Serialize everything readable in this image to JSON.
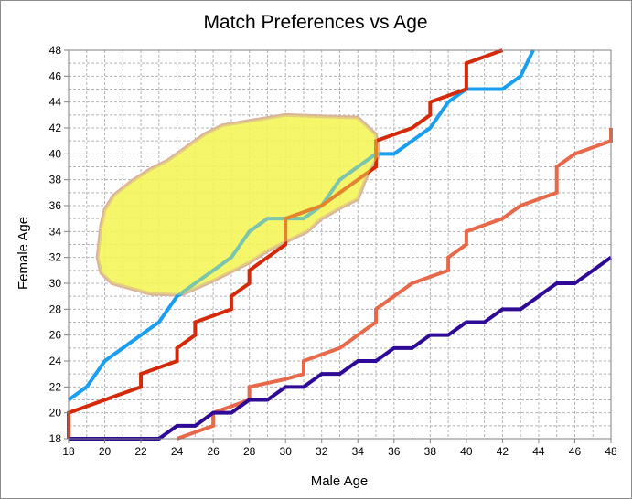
{
  "chart_data": {
    "type": "line",
    "title": "Match Preferences vs Age",
    "xlabel": "Male Age",
    "ylabel": "Female Age",
    "xlim": [
      18,
      48
    ],
    "ylim": [
      18,
      48
    ],
    "x_ticks": [
      18,
      20,
      22,
      24,
      26,
      28,
      30,
      32,
      34,
      36,
      38,
      40,
      42,
      44,
      46,
      48
    ],
    "y_ticks": [
      18,
      20,
      22,
      24,
      26,
      28,
      30,
      32,
      34,
      36,
      38,
      40,
      42,
      44,
      46,
      48
    ],
    "grid": true,
    "legend": "none",
    "highlight_region": {
      "color": "#f5f55a",
      "border_color": "#d9b59a",
      "points": [
        [
          26.5,
          42.2
        ],
        [
          30,
          43
        ],
        [
          34,
          42.8
        ],
        [
          35,
          41.5
        ],
        [
          35.2,
          40
        ],
        [
          34.5,
          38.3
        ],
        [
          34,
          36.5
        ],
        [
          33,
          35.8
        ],
        [
          32,
          35
        ],
        [
          31.2,
          34
        ],
        [
          30,
          33.2
        ],
        [
          29,
          32.5
        ],
        [
          28,
          31.6
        ],
        [
          26,
          30.2
        ],
        [
          24.2,
          29.1
        ],
        [
          22.5,
          29.2
        ],
        [
          20.4,
          30
        ],
        [
          19.8,
          30.8
        ],
        [
          19.6,
          32
        ],
        [
          19.8,
          34.5
        ],
        [
          20,
          35.7
        ],
        [
          20.5,
          36.8
        ],
        [
          21.5,
          37.9
        ],
        [
          22.5,
          38.8
        ],
        [
          23.5,
          39.5
        ],
        [
          24.5,
          40.5
        ],
        [
          25.5,
          41.5
        ]
      ]
    },
    "series": [
      {
        "color": "#1a9ff0",
        "points": [
          [
            18,
            21
          ],
          [
            19,
            22
          ],
          [
            20,
            24
          ],
          [
            21,
            25
          ],
          [
            22,
            26
          ],
          [
            23,
            27
          ],
          [
            24,
            29
          ],
          [
            25,
            30
          ],
          [
            26,
            31
          ],
          [
            27,
            32
          ],
          [
            28,
            34
          ],
          [
            29,
            35
          ],
          [
            30,
            35
          ],
          [
            31,
            35
          ],
          [
            32,
            36
          ],
          [
            33,
            38
          ],
          [
            34,
            39
          ],
          [
            35,
            40
          ],
          [
            36,
            40
          ],
          [
            37,
            41
          ],
          [
            38,
            42
          ],
          [
            39,
            44
          ],
          [
            40,
            45
          ],
          [
            41,
            45
          ],
          [
            42,
            45
          ],
          [
            43,
            46
          ],
          [
            43.7,
            48
          ]
        ]
      },
      {
        "color": "#d42a0a",
        "points": [
          [
            18,
            18
          ],
          [
            18,
            20
          ],
          [
            19,
            20.5
          ],
          [
            20,
            21
          ],
          [
            21,
            21.5
          ],
          [
            22,
            22
          ],
          [
            22,
            23
          ],
          [
            23,
            23.5
          ],
          [
            24,
            24
          ],
          [
            24,
            25
          ],
          [
            25,
            26
          ],
          [
            25,
            27
          ],
          [
            26,
            27.5
          ],
          [
            27,
            28
          ],
          [
            27,
            29
          ],
          [
            28,
            30
          ],
          [
            28,
            31
          ],
          [
            29,
            32
          ],
          [
            30,
            33
          ],
          [
            30,
            35
          ],
          [
            31,
            35.5
          ],
          [
            32,
            36
          ],
          [
            33,
            37
          ],
          [
            34,
            38
          ],
          [
            35,
            39
          ],
          [
            35,
            41
          ],
          [
            36,
            41.5
          ],
          [
            37,
            42
          ],
          [
            38,
            43
          ],
          [
            38,
            44
          ],
          [
            39,
            44.5
          ],
          [
            40,
            45
          ],
          [
            40,
            47
          ],
          [
            41,
            47.5
          ],
          [
            42,
            48
          ]
        ]
      },
      {
        "color": "#e8694a",
        "points": [
          [
            24,
            18
          ],
          [
            25,
            18.5
          ],
          [
            26,
            19
          ],
          [
            26,
            20
          ],
          [
            27,
            20.5
          ],
          [
            28,
            21
          ],
          [
            28,
            22
          ],
          [
            29,
            22.3
          ],
          [
            30,
            22.6
          ],
          [
            31,
            23
          ],
          [
            31,
            24
          ],
          [
            32,
            24.5
          ],
          [
            33,
            25
          ],
          [
            34,
            26
          ],
          [
            35,
            27
          ],
          [
            35,
            28
          ],
          [
            36,
            29
          ],
          [
            37,
            30
          ],
          [
            38,
            30.5
          ],
          [
            39,
            31
          ],
          [
            39,
            32
          ],
          [
            40,
            33
          ],
          [
            40,
            34
          ],
          [
            41,
            34.5
          ],
          [
            42,
            35
          ],
          [
            43,
            36
          ],
          [
            44,
            36.5
          ],
          [
            45,
            37
          ],
          [
            45,
            39
          ],
          [
            46,
            40
          ],
          [
            47,
            40.5
          ],
          [
            48,
            41
          ],
          [
            48,
            42
          ]
        ]
      },
      {
        "color": "#2e0a96",
        "points": [
          [
            18,
            18
          ],
          [
            19,
            18
          ],
          [
            20,
            18
          ],
          [
            21,
            18
          ],
          [
            22,
            18
          ],
          [
            23,
            18
          ],
          [
            24,
            19
          ],
          [
            25,
            19
          ],
          [
            26,
            20
          ],
          [
            27,
            20
          ],
          [
            28,
            21
          ],
          [
            29,
            21
          ],
          [
            30,
            22
          ],
          [
            31,
            22
          ],
          [
            32,
            23
          ],
          [
            33,
            23
          ],
          [
            34,
            24
          ],
          [
            35,
            24
          ],
          [
            36,
            25
          ],
          [
            37,
            25
          ],
          [
            38,
            26
          ],
          [
            39,
            26
          ],
          [
            40,
            27
          ],
          [
            41,
            27
          ],
          [
            42,
            28
          ],
          [
            43,
            28
          ],
          [
            44,
            29
          ],
          [
            45,
            30
          ],
          [
            46,
            30
          ],
          [
            47,
            31
          ],
          [
            48,
            32
          ]
        ]
      }
    ]
  }
}
